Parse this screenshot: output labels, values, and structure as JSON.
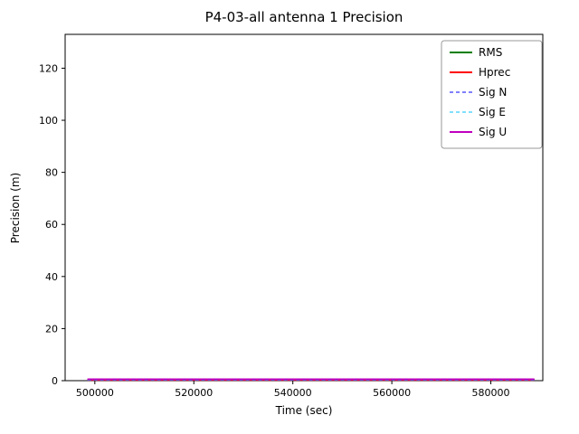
{
  "chart_data": {
    "type": "line",
    "title": "P4-03-all antenna 1 Precision",
    "xlabel": "Time (sec)",
    "ylabel": "Precision (m)",
    "xlim": [
      494000,
      590500
    ],
    "ylim": [
      0,
      133
    ],
    "xticks": [
      500000,
      520000,
      540000,
      560000,
      580000
    ],
    "yticks": [
      0,
      20,
      40,
      60,
      80,
      100,
      120
    ],
    "grid": false,
    "legend_position": "upper right",
    "series": [
      {
        "name": "RMS",
        "color": "#008000",
        "style": "solid",
        "width": 2,
        "x": [
          498500,
          588800
        ],
        "values": [
          0.4,
          0.4
        ]
      },
      {
        "name": "Hprec",
        "color": "#ff0000",
        "style": "solid",
        "width": 2,
        "x": [
          498500,
          588800
        ],
        "values": [
          0.3,
          0.3
        ]
      },
      {
        "name": "Sig N",
        "color": "#0000ff",
        "style": "dashed",
        "width": 1,
        "x": [
          498500,
          588800
        ],
        "values": [
          0.25,
          0.25
        ]
      },
      {
        "name": "Sig E",
        "color": "#00bfff",
        "style": "dashed",
        "width": 1,
        "x": [
          498500,
          588800
        ],
        "values": [
          0.2,
          0.2
        ]
      },
      {
        "name": "Sig U",
        "color": "#bf00bf",
        "style": "solid",
        "width": 2,
        "x": [
          498500,
          588800
        ],
        "values": [
          0.5,
          0.5
        ]
      }
    ]
  }
}
